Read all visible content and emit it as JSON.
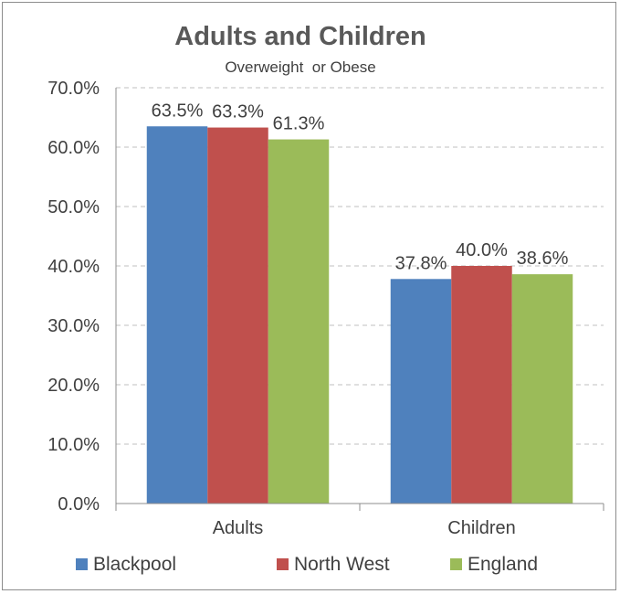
{
  "chart_data": {
    "type": "bar",
    "title": "Adults and Children",
    "subtitle": "Overweight  or Obese",
    "xlabel": "",
    "ylabel": "",
    "categories": [
      "Adults",
      "Children"
    ],
    "series": [
      {
        "name": "Blackpool",
        "values": [
          63.5,
          37.8
        ],
        "labels": [
          "63.5%",
          "37.8%"
        ],
        "color": "#4f81bd"
      },
      {
        "name": "North West",
        "values": [
          63.3,
          40.0
        ],
        "labels": [
          "63.3%",
          "40.0%"
        ],
        "color": "#c0504d"
      },
      {
        "name": "England",
        "values": [
          61.3,
          38.6
        ],
        "labels": [
          "61.3%",
          "38.6%"
        ],
        "color": "#9bbb59"
      }
    ],
    "ylim": [
      0,
      70
    ],
    "yticks": [
      0,
      10,
      20,
      30,
      40,
      50,
      60,
      70
    ],
    "ytick_labels": [
      "0.0%",
      "10.0%",
      "20.0%",
      "30.0%",
      "40.0%",
      "50.0%",
      "60.0%",
      "70.0%"
    ],
    "grid": true,
    "legend_position": "bottom"
  }
}
